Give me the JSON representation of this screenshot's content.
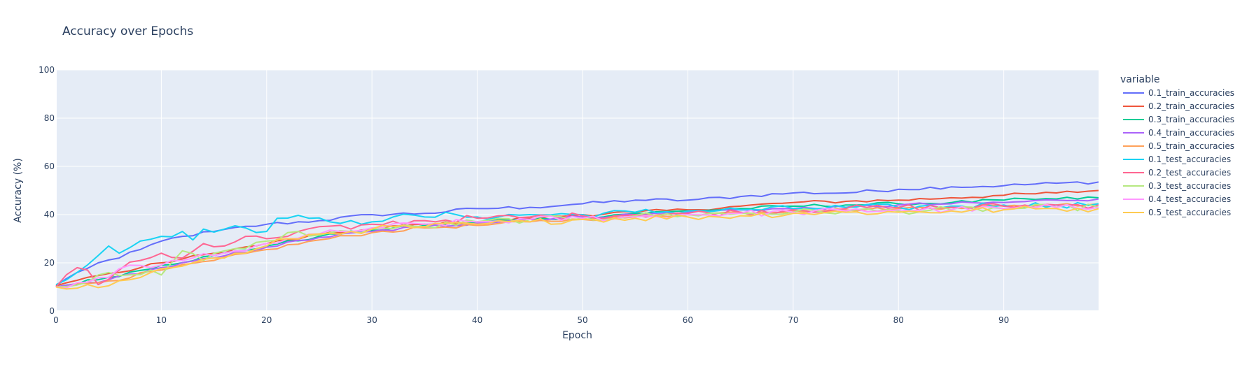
{
  "chart_data": {
    "type": "line",
    "title": "Accuracy over Epochs",
    "xlabel": "Epoch",
    "ylabel": "Accuracy (%)",
    "xlim": [
      0,
      99
    ],
    "ylim": [
      0,
      100
    ],
    "x_ticks": [
      0,
      10,
      20,
      30,
      40,
      50,
      60,
      70,
      80,
      90
    ],
    "y_ticks": [
      0,
      20,
      40,
      60,
      80,
      100
    ],
    "grid": true,
    "legend": {
      "title": "variable",
      "placement": "right"
    },
    "series": [
      {
        "name": "0.1_train_accuracies",
        "color": "#636efa",
        "keypoints": [
          [
            0,
            10.5
          ],
          [
            2,
            16
          ],
          [
            4,
            20
          ],
          [
            6,
            22
          ],
          [
            8,
            25.5
          ],
          [
            10,
            29
          ],
          [
            12,
            31
          ],
          [
            15,
            33
          ],
          [
            20,
            36
          ],
          [
            25,
            37.5
          ],
          [
            30,
            40
          ],
          [
            35,
            40.5
          ],
          [
            40,
            42.5
          ],
          [
            45,
            43
          ],
          [
            50,
            44.5
          ],
          [
            55,
            46
          ],
          [
            60,
            46
          ],
          [
            65,
            47.5
          ],
          [
            70,
            49
          ],
          [
            75,
            49
          ],
          [
            80,
            50.5
          ],
          [
            85,
            51.5
          ],
          [
            90,
            52
          ],
          [
            95,
            53
          ],
          [
            99,
            53.5
          ]
        ]
      },
      {
        "name": "0.2_train_accuracies",
        "color": "#EF553B",
        "keypoints": [
          [
            0,
            10.5
          ],
          [
            3,
            14
          ],
          [
            6,
            16
          ],
          [
            10,
            20
          ],
          [
            15,
            24
          ],
          [
            20,
            28
          ],
          [
            25,
            31.5
          ],
          [
            30,
            34
          ],
          [
            35,
            36
          ],
          [
            40,
            37
          ],
          [
            45,
            38.5
          ],
          [
            50,
            40
          ],
          [
            55,
            41
          ],
          [
            60,
            42
          ],
          [
            65,
            43.5
          ],
          [
            70,
            45
          ],
          [
            75,
            45.5
          ],
          [
            80,
            46
          ],
          [
            85,
            47
          ],
          [
            90,
            48
          ],
          [
            95,
            49
          ],
          [
            99,
            50
          ]
        ]
      },
      {
        "name": "0.3_train_accuracies",
        "color": "#00cc96",
        "keypoints": [
          [
            0,
            10
          ],
          [
            5,
            14
          ],
          [
            10,
            19
          ],
          [
            15,
            23
          ],
          [
            20,
            27
          ],
          [
            25,
            31
          ],
          [
            30,
            33.5
          ],
          [
            35,
            35.5
          ],
          [
            40,
            37
          ],
          [
            45,
            38
          ],
          [
            50,
            39
          ],
          [
            55,
            40.5
          ],
          [
            60,
            41.5
          ],
          [
            65,
            42.5
          ],
          [
            70,
            43.5
          ],
          [
            75,
            44
          ],
          [
            80,
            44.5
          ],
          [
            85,
            45
          ],
          [
            90,
            46
          ],
          [
            95,
            46.5
          ],
          [
            99,
            47
          ]
        ]
      },
      {
        "name": "0.4_train_accuracies",
        "color": "#ab63fa",
        "keypoints": [
          [
            0,
            10
          ],
          [
            5,
            13
          ],
          [
            10,
            18
          ],
          [
            15,
            22
          ],
          [
            20,
            26.5
          ],
          [
            25,
            30.5
          ],
          [
            30,
            33
          ],
          [
            35,
            35
          ],
          [
            40,
            36.5
          ],
          [
            45,
            38
          ],
          [
            50,
            39
          ],
          [
            55,
            40
          ],
          [
            60,
            41
          ],
          [
            65,
            42
          ],
          [
            70,
            42.5
          ],
          [
            75,
            43
          ],
          [
            80,
            44
          ],
          [
            85,
            44.5
          ],
          [
            90,
            45
          ],
          [
            95,
            46
          ],
          [
            99,
            46.5
          ]
        ]
      },
      {
        "name": "0.5_train_accuracies",
        "color": "#FFA15A",
        "keypoints": [
          [
            0,
            10
          ],
          [
            5,
            12.5
          ],
          [
            10,
            17
          ],
          [
            15,
            21
          ],
          [
            20,
            25.5
          ],
          [
            25,
            29.5
          ],
          [
            30,
            32.5
          ],
          [
            35,
            34.5
          ],
          [
            40,
            35.5
          ],
          [
            45,
            37
          ],
          [
            50,
            38
          ],
          [
            55,
            39
          ],
          [
            60,
            40
          ],
          [
            65,
            41
          ],
          [
            70,
            41.5
          ],
          [
            75,
            42
          ],
          [
            80,
            42.5
          ],
          [
            85,
            43
          ],
          [
            90,
            43.5
          ],
          [
            95,
            44
          ],
          [
            99,
            44.5
          ]
        ]
      },
      {
        "name": "0.1_test_accuracies",
        "color": "#19d3f3",
        "keypoints": [
          [
            0,
            11
          ],
          [
            2,
            16
          ],
          [
            4,
            23
          ],
          [
            5,
            27
          ],
          [
            6,
            24
          ],
          [
            8,
            29
          ],
          [
            10,
            31
          ],
          [
            12,
            33
          ],
          [
            13,
            29.5
          ],
          [
            14,
            34
          ],
          [
            16,
            34
          ],
          [
            18,
            34.5
          ],
          [
            20,
            33
          ],
          [
            21,
            38.5
          ],
          [
            24,
            38.5
          ],
          [
            26,
            37
          ],
          [
            28,
            37.5
          ],
          [
            30,
            37
          ],
          [
            32,
            39
          ],
          [
            35,
            39
          ],
          [
            38,
            40
          ],
          [
            40,
            39
          ],
          [
            45,
            40
          ],
          [
            50,
            40
          ],
          [
            55,
            41
          ],
          [
            60,
            41.5
          ],
          [
            65,
            42
          ],
          [
            70,
            42.5
          ],
          [
            75,
            43
          ],
          [
            80,
            43
          ],
          [
            85,
            43.5
          ],
          [
            90,
            44
          ],
          [
            95,
            44
          ],
          [
            99,
            44.5
          ]
        ]
      },
      {
        "name": "0.2_test_accuracies",
        "color": "#FF6692",
        "keypoints": [
          [
            0,
            10
          ],
          [
            2,
            18
          ],
          [
            3,
            17
          ],
          [
            4,
            11
          ],
          [
            6,
            17
          ],
          [
            8,
            21
          ],
          [
            10,
            24
          ],
          [
            12,
            22
          ],
          [
            14,
            28
          ],
          [
            16,
            27
          ],
          [
            18,
            31
          ],
          [
            20,
            30
          ],
          [
            22,
            31
          ],
          [
            25,
            35
          ],
          [
            28,
            34
          ],
          [
            30,
            36
          ],
          [
            35,
            37.5
          ],
          [
            40,
            38.5
          ],
          [
            45,
            39
          ],
          [
            50,
            39.5
          ],
          [
            55,
            40
          ],
          [
            60,
            40.5
          ],
          [
            65,
            41
          ],
          [
            70,
            42
          ],
          [
            75,
            42.5
          ],
          [
            80,
            43
          ],
          [
            85,
            43
          ],
          [
            90,
            43.5
          ],
          [
            95,
            44
          ],
          [
            99,
            44
          ]
        ]
      },
      {
        "name": "0.3_test_accuracies",
        "color": "#B6E880",
        "keypoints": [
          [
            0,
            10
          ],
          [
            3,
            12
          ],
          [
            5,
            16
          ],
          [
            7,
            15
          ],
          [
            9,
            17
          ],
          [
            10,
            15
          ],
          [
            12,
            25
          ],
          [
            14,
            21
          ],
          [
            16,
            25
          ],
          [
            18,
            26
          ],
          [
            20,
            29
          ],
          [
            23,
            33
          ],
          [
            25,
            31.5
          ],
          [
            28,
            33
          ],
          [
            30,
            34
          ],
          [
            35,
            35
          ],
          [
            40,
            37
          ],
          [
            45,
            38
          ],
          [
            50,
            38.5
          ],
          [
            55,
            39.5
          ],
          [
            60,
            40
          ],
          [
            65,
            40.5
          ],
          [
            70,
            41
          ],
          [
            75,
            41.5
          ],
          [
            80,
            41.5
          ],
          [
            85,
            42
          ],
          [
            90,
            42.5
          ],
          [
            95,
            43
          ],
          [
            99,
            43
          ]
        ]
      },
      {
        "name": "0.4_test_accuracies",
        "color": "#FF97FF",
        "keypoints": [
          [
            0,
            10
          ],
          [
            3,
            12
          ],
          [
            5,
            14
          ],
          [
            7,
            19
          ],
          [
            9,
            18
          ],
          [
            11,
            21
          ],
          [
            13,
            22
          ],
          [
            15,
            23
          ],
          [
            18,
            25
          ],
          [
            20,
            28
          ],
          [
            22,
            30
          ],
          [
            25,
            32
          ],
          [
            28,
            33
          ],
          [
            30,
            34.5
          ],
          [
            35,
            36
          ],
          [
            40,
            37
          ],
          [
            45,
            38
          ],
          [
            50,
            38.5
          ],
          [
            55,
            39
          ],
          [
            60,
            40
          ],
          [
            65,
            40.5
          ],
          [
            70,
            41
          ],
          [
            75,
            41.5
          ],
          [
            80,
            42
          ],
          [
            85,
            42
          ],
          [
            90,
            42.5
          ],
          [
            95,
            43
          ],
          [
            99,
            43
          ]
        ]
      },
      {
        "name": "0.5_test_accuracies",
        "color": "#FECB52",
        "keypoints": [
          [
            0,
            10
          ],
          [
            3,
            11
          ],
          [
            5,
            10.5
          ],
          [
            7,
            13
          ],
          [
            9,
            16
          ],
          [
            11,
            18
          ],
          [
            13,
            20
          ],
          [
            15,
            22
          ],
          [
            18,
            24
          ],
          [
            20,
            27
          ],
          [
            22,
            30
          ],
          [
            25,
            32
          ],
          [
            28,
            33
          ],
          [
            30,
            34
          ],
          [
            35,
            35
          ],
          [
            40,
            36
          ],
          [
            45,
            37
          ],
          [
            50,
            38
          ],
          [
            55,
            38.5
          ],
          [
            60,
            39
          ],
          [
            65,
            39.5
          ],
          [
            70,
            40.5
          ],
          [
            75,
            41
          ],
          [
            80,
            41
          ],
          [
            85,
            41.5
          ],
          [
            90,
            42
          ],
          [
            95,
            42.5
          ],
          [
            99,
            42.5
          ]
        ]
      }
    ]
  }
}
